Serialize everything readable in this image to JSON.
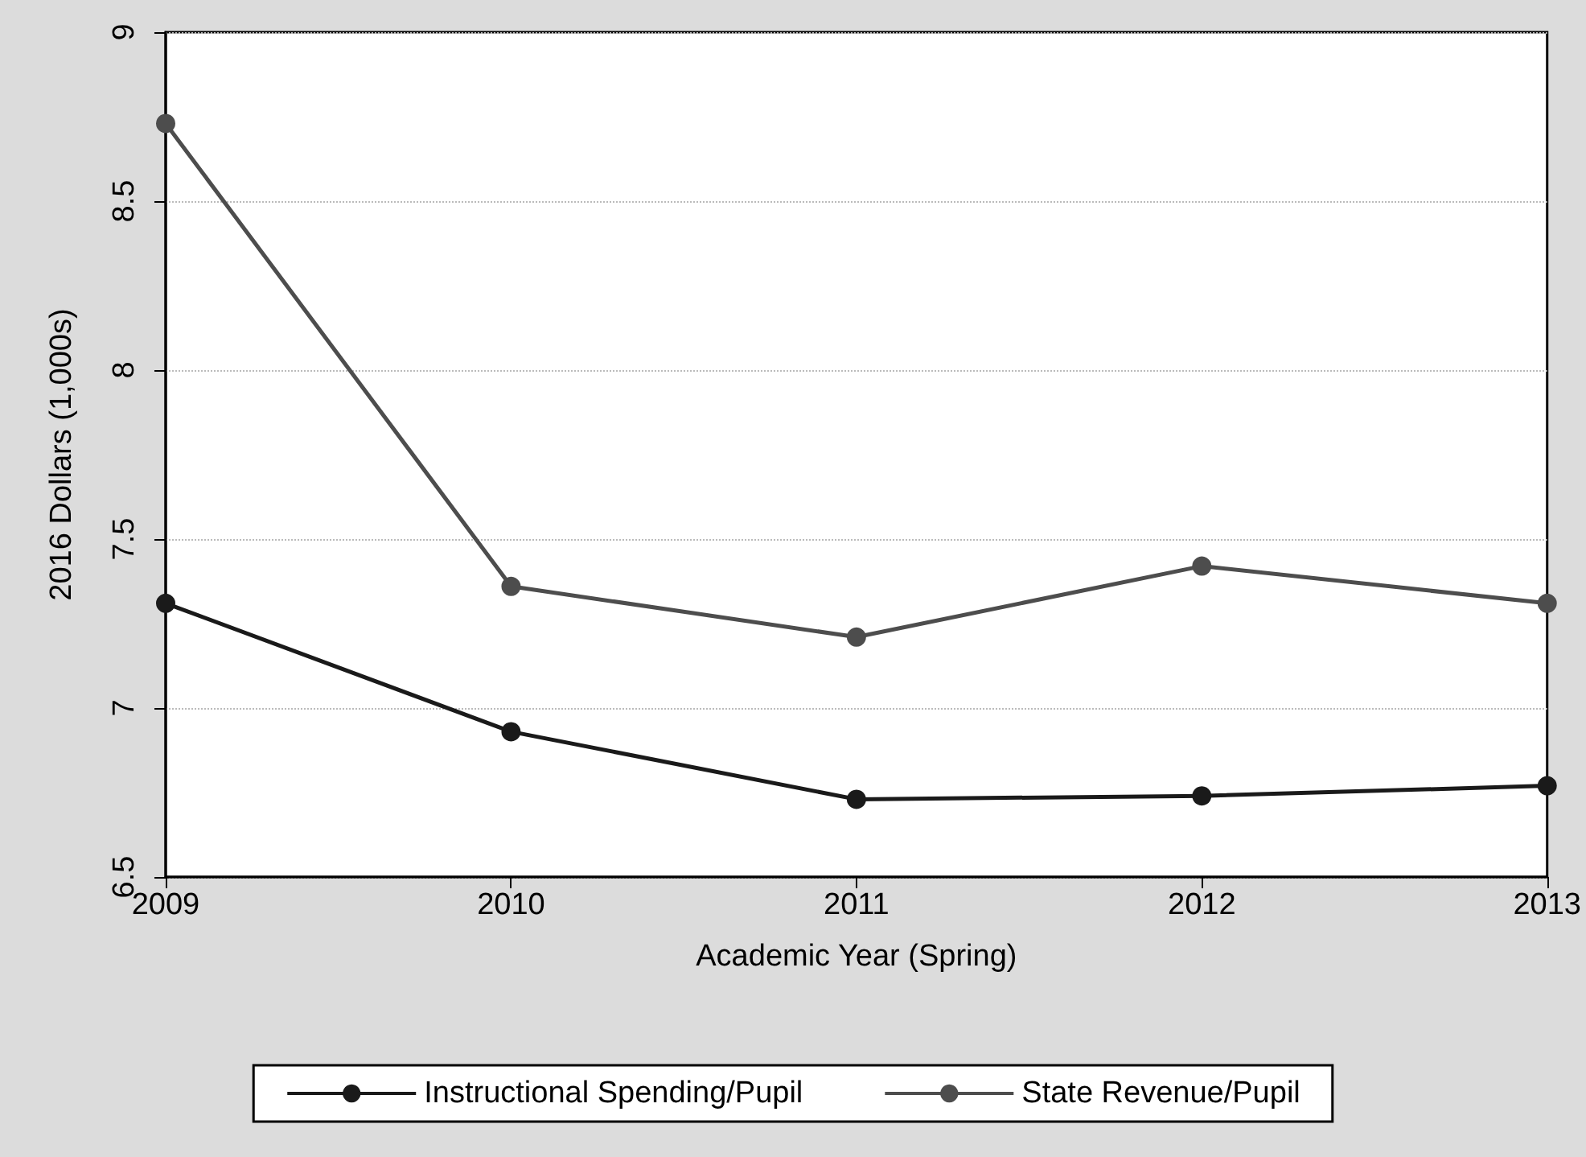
{
  "chart_data": {
    "type": "line",
    "xlabel": "Academic Year (Spring)",
    "ylabel": "2016 Dollars (1,000s)",
    "categories": [
      "2009",
      "2010",
      "2011",
      "2012",
      "2013"
    ],
    "series": [
      {
        "name": "Instructional Spending/Pupil",
        "color": "#1a1a1a",
        "values": [
          7.31,
          6.93,
          6.73,
          6.74,
          6.77
        ]
      },
      {
        "name": "State Revenue/Pupil",
        "color": "#4d4d4d",
        "values": [
          8.73,
          7.36,
          7.21,
          7.42,
          7.31
        ]
      }
    ],
    "ylim": [
      6.5,
      9
    ],
    "yticks": [
      6.5,
      7,
      7.5,
      8,
      8.5,
      9
    ],
    "grid": "y",
    "legend": "bottom",
    "marker": "circle",
    "line_style": "solid"
  }
}
